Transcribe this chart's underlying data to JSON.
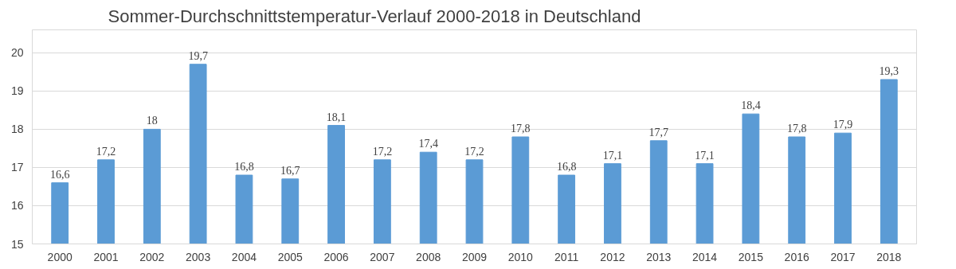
{
  "chart_data": {
    "type": "bar",
    "title": "Sommer-Durchschnittstemperatur-Verlauf 2000-2018 in Deutschland",
    "categories": [
      "2000",
      "2001",
      "2002",
      "2003",
      "2004",
      "2005",
      "2006",
      "2007",
      "2008",
      "2009",
      "2010",
      "2011",
      "2012",
      "2013",
      "2014",
      "2015",
      "2016",
      "2017",
      "2018"
    ],
    "values": [
      16.6,
      17.2,
      18,
      19.7,
      16.8,
      16.7,
      18.1,
      17.2,
      17.4,
      17.2,
      17.8,
      16.8,
      17.1,
      17.7,
      17.1,
      18.4,
      17.8,
      17.9,
      19.3
    ],
    "value_labels": [
      "16,6",
      "17,2",
      "18",
      "19,7",
      "16,8",
      "16,7",
      "18,1",
      "17,2",
      "17,4",
      "17,2",
      "17,8",
      "16,8",
      "17,1",
      "17,7",
      "17,1",
      "18,4",
      "17,8",
      "17,9",
      "19,3"
    ],
    "color": "#5b9bd5",
    "ylim": [
      15,
      20.6
    ],
    "yticks": [
      15,
      16,
      17,
      18,
      19,
      20
    ],
    "grid": "y"
  }
}
